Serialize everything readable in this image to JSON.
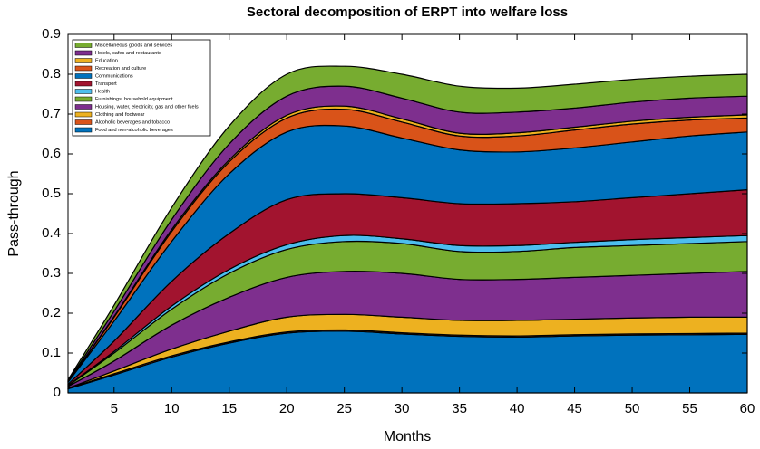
{
  "chart_data": {
    "type": "stacked-area",
    "title": "Sectoral decomposition of ERPT into welfare loss",
    "x_label": "Months",
    "y_label": "Pass-through",
    "x": [
      1,
      5,
      10,
      15,
      20,
      25,
      30,
      35,
      40,
      45,
      50,
      55,
      60
    ],
    "xlim": [
      1,
      60
    ],
    "xticks": [
      5,
      10,
      15,
      20,
      25,
      30,
      35,
      40,
      45,
      50,
      55,
      60
    ],
    "ylim": [
      0,
      0.9
    ],
    "yticks": [
      0,
      0.1,
      0.2,
      0.3,
      0.4,
      0.5,
      0.6,
      0.7,
      0.8,
      0.9
    ],
    "legend_position": "upper-left",
    "series": [
      {
        "name": "Food and non-alcoholic beverages",
        "color": "#0072BD",
        "values": [
          0.01,
          0.045,
          0.09,
          0.125,
          0.15,
          0.155,
          0.148,
          0.142,
          0.14,
          0.143,
          0.145,
          0.146,
          0.147
        ]
      },
      {
        "name": "Alcoholic beverages and tobacco",
        "color": "#D95319",
        "values": [
          0.001,
          0.003,
          0.003,
          0.003,
          0.003,
          0.003,
          0.003,
          0.003,
          0.003,
          0.003,
          0.003,
          0.003,
          0.003
        ]
      },
      {
        "name": "Clothing and footwear",
        "color": "#EDB120",
        "values": [
          0.001,
          0.007,
          0.017,
          0.027,
          0.037,
          0.039,
          0.039,
          0.037,
          0.039,
          0.039,
          0.04,
          0.041,
          0.04
        ]
      },
      {
        "name": "Housing, water, electricity, gas and other fuels",
        "color": "#7E2F8E",
        "values": [
          0.004,
          0.025,
          0.06,
          0.085,
          0.1,
          0.108,
          0.11,
          0.103,
          0.103,
          0.105,
          0.107,
          0.11,
          0.115
        ]
      },
      {
        "name": "Furnishings, household equipment",
        "color": "#77AC30",
        "values": [
          0.002,
          0.02,
          0.04,
          0.06,
          0.07,
          0.075,
          0.075,
          0.07,
          0.07,
          0.075,
          0.075,
          0.075,
          0.075
        ]
      },
      {
        "name": "Health",
        "color": "#4DBEEE",
        "values": [
          0.001,
          0.004,
          0.008,
          0.01,
          0.012,
          0.015,
          0.012,
          0.015,
          0.015,
          0.013,
          0.015,
          0.015,
          0.015
        ]
      },
      {
        "name": "Transport",
        "color": "#A2142F",
        "values": [
          0.003,
          0.026,
          0.062,
          0.09,
          0.113,
          0.105,
          0.103,
          0.105,
          0.105,
          0.102,
          0.105,
          0.11,
          0.115
        ]
      },
      {
        "name": "Communications",
        "color": "#0072BD",
        "values": [
          0.005,
          0.05,
          0.1,
          0.15,
          0.17,
          0.17,
          0.15,
          0.135,
          0.13,
          0.135,
          0.14,
          0.145,
          0.145
        ]
      },
      {
        "name": "Recreation and culture",
        "color": "#D95319",
        "values": [
          0.001,
          0.01,
          0.025,
          0.03,
          0.035,
          0.042,
          0.04,
          0.035,
          0.04,
          0.045,
          0.045,
          0.04,
          0.035
        ]
      },
      {
        "name": "Education",
        "color": "#EDB120",
        "values": [
          0.0005,
          0.002,
          0.005,
          0.005,
          0.007,
          0.008,
          0.008,
          0.007,
          0.008,
          0.007,
          0.007,
          0.007,
          0.008
        ]
      },
      {
        "name": "Hotels, cafes and restaurants",
        "color": "#7E2F8E",
        "values": [
          0.0015,
          0.013,
          0.025,
          0.04,
          0.048,
          0.05,
          0.052,
          0.053,
          0.052,
          0.048,
          0.048,
          0.048,
          0.047
        ]
      },
      {
        "name": "Miscellaneous goods and services",
        "color": "#77AC30",
        "values": [
          0.003,
          0.015,
          0.03,
          0.045,
          0.055,
          0.05,
          0.06,
          0.065,
          0.06,
          0.06,
          0.057,
          0.055,
          0.055
        ]
      }
    ]
  }
}
